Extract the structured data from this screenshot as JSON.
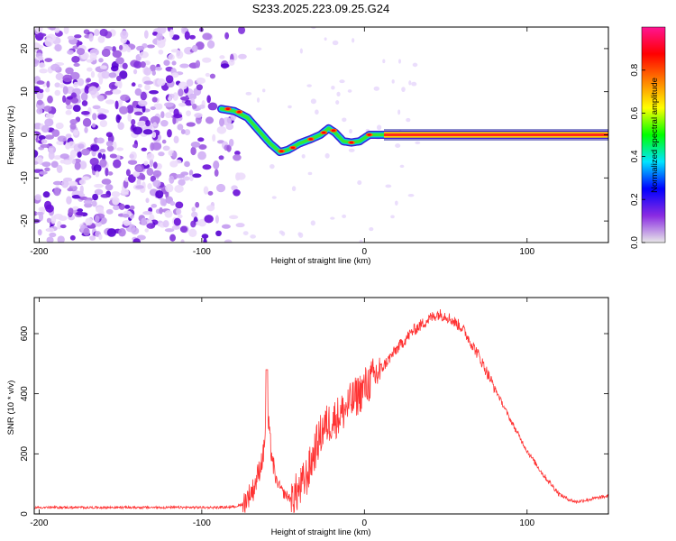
{
  "title": "S233.2025.223.09.25.G24",
  "chart_data": [
    {
      "type": "heatmap",
      "xlabel": "Height of straight line (km)",
      "ylabel": "Frequency (Hz)",
      "xlim": [
        -203,
        150
      ],
      "ylim": [
        -25,
        25
      ],
      "xticks": [
        -200,
        -100,
        0,
        100
      ],
      "yticks": [
        -20,
        -10,
        0,
        10,
        20
      ],
      "colorbar": {
        "label": "Normalized spectral amplitude",
        "range": [
          0,
          1
        ],
        "ticks": [
          "0.0",
          "0.2",
          "0.4",
          "0.6",
          "0.8"
        ],
        "tick_values": [
          0,
          0.2,
          0.4,
          0.6,
          0.8
        ],
        "colormap": [
          "#e8e8e8",
          "#8a2be2",
          "#0000ff",
          "#00e5ff",
          "#00ff00",
          "#ffff00",
          "#ff8000",
          "#ff0000",
          "#ff1493"
        ]
      },
      "ridge": {
        "x": [
          -88,
          -80,
          -72,
          -65,
          -58,
          -52,
          -47,
          -40,
          -33,
          -27,
          -22,
          -18,
          -13,
          -8,
          -3,
          3,
          10,
          20,
          40,
          80,
          120,
          150
        ],
        "y": [
          6,
          5.5,
          4,
          1,
          -2,
          -4,
          -3.5,
          -2,
          -1,
          0,
          1.5,
          0.5,
          -1.5,
          -1.8,
          -1.5,
          0,
          0,
          0,
          0,
          0,
          0,
          0
        ]
      }
    },
    {
      "type": "line",
      "xlabel": "Height of straight line (km)",
      "ylabel": "SNR (10 * v/v)",
      "xlim": [
        -203,
        150
      ],
      "ylim": [
        0,
        720
      ],
      "xticks": [
        -200,
        -100,
        0,
        100
      ],
      "yticks": [
        0,
        200,
        400,
        600
      ],
      "series": [
        {
          "name": "SNR",
          "color": "#ff3333",
          "x": [
            -203,
            -190,
            -175,
            -160,
            -145,
            -130,
            -115,
            -100,
            -90,
            -80,
            -75,
            -72,
            -68,
            -65,
            -62,
            -60,
            -58,
            -55,
            -50,
            -45,
            -40,
            -35,
            -30,
            -25,
            -20,
            -15,
            -10,
            -5,
            0,
            10,
            20,
            30,
            40,
            45,
            50,
            60,
            70,
            80,
            90,
            100,
            110,
            120,
            125,
            130,
            140,
            150
          ],
          "y": [
            20,
            20,
            20,
            20,
            20,
            20,
            20,
            20,
            20,
            22,
            30,
            55,
            85,
            140,
            200,
            360,
            240,
            120,
            70,
            50,
            80,
            130,
            220,
            290,
            310,
            330,
            360,
            390,
            420,
            480,
            550,
            610,
            650,
            665,
            660,
            620,
            530,
            420,
            310,
            210,
            130,
            65,
            50,
            40,
            50,
            60
          ]
        }
      ]
    }
  ]
}
